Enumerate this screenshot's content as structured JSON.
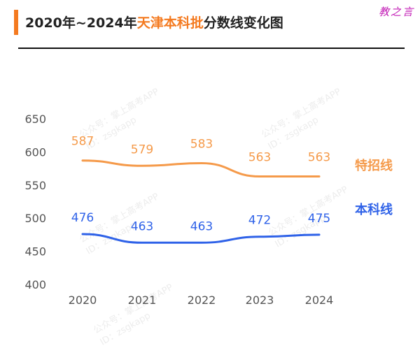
{
  "header": {
    "title_prefix": "2020年~2024年",
    "title_highlight": "天津本科批",
    "title_suffix": "分数线变化图",
    "stamp": "教之言"
  },
  "watermark": [
    "公众号：掌上高考APP",
    "ID：zsgkapp"
  ],
  "colors": {
    "accent": "#f47a20",
    "orange_series": "#f59a4a",
    "blue_series": "#2f62e8"
  },
  "chart_data": {
    "type": "line",
    "categories": [
      "2020",
      "2021",
      "2022",
      "2023",
      "2024"
    ],
    "series": [
      {
        "name": "特招线",
        "values": [
          587,
          579,
          583,
          563,
          563
        ],
        "color": "#f59a4a"
      },
      {
        "name": "本科线",
        "values": [
          476,
          463,
          463,
          472,
          475
        ],
        "color": "#2f62e8"
      }
    ],
    "yticks": [
      400,
      450,
      500,
      550,
      600,
      650
    ],
    "ylim": [
      400,
      650
    ],
    "grid": false,
    "legend": "right-inline"
  }
}
